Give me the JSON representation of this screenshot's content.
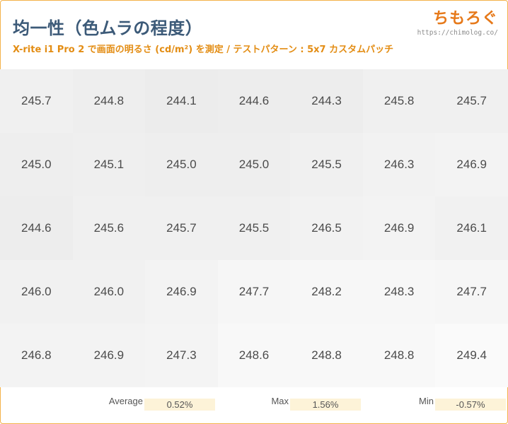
{
  "header": {
    "title": "均一性（色ムラの程度）",
    "subtitle": "X-rite i1 Pro 2 で画面の明るさ (cd/m²) を測定 / テストパターン : 5x7 カスタムパッチ",
    "logo_text": "ちもろぐ",
    "logo_url": "https://chimolog.co/"
  },
  "colors": {
    "title": "#3c5a78",
    "subtitle": "#e38d14",
    "logo": "#e6791a",
    "stats_highlight": "#fdf3d8",
    "border": "#f3b24a"
  },
  "chart_data": {
    "type": "heatmap",
    "rows": 5,
    "cols": 7,
    "unit": "cd/m²",
    "values": [
      [
        245.7,
        244.8,
        244.1,
        244.6,
        244.3,
        245.8,
        245.7
      ],
      [
        245.0,
        245.1,
        245.0,
        245.0,
        245.5,
        246.3,
        246.9
      ],
      [
        244.6,
        245.6,
        245.7,
        245.5,
        246.5,
        246.9,
        246.1
      ],
      [
        246.0,
        246.0,
        246.9,
        247.7,
        248.2,
        248.3,
        247.7
      ],
      [
        246.8,
        246.9,
        247.3,
        248.6,
        248.8,
        248.8,
        249.4
      ]
    ],
    "labels": [
      [
        "245.7",
        "244.8",
        "244.1",
        "244.6",
        "244.3",
        "245.8",
        "245.7"
      ],
      [
        "245.0",
        "245.1",
        "245.0",
        "245.0",
        "245.5",
        "246.3",
        "246.9"
      ],
      [
        "244.6",
        "245.6",
        "245.7",
        "245.5",
        "246.5",
        "246.9",
        "246.1"
      ],
      [
        "246.0",
        "246.0",
        "246.9",
        "247.7",
        "248.2",
        "248.3",
        "247.7"
      ],
      [
        "246.8",
        "246.9",
        "247.3",
        "248.6",
        "248.8",
        "248.8",
        "249.4"
      ]
    ],
    "color_scale": {
      "low": "#ececec",
      "high": "#fafafa"
    }
  },
  "stats": {
    "average_label": "Average",
    "average_value": "0.52%",
    "max_label": "Max",
    "max_value": "1.56%",
    "min_label": "Min",
    "min_value": "-0.57%"
  }
}
